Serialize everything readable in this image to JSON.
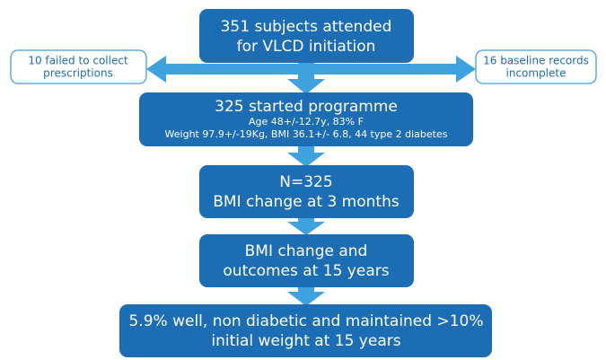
{
  "nodes": [
    {
      "lines": [
        "351 subjects attended",
        "for VLCD initiation"
      ]
    },
    {
      "lines": [
        "325 started programme",
        "Age 48+/-12.7y, 83% F",
        "Weight 97.9+/-19Kg, BMI 36.1+/- 6.8,  44 type 2 diabetes"
      ]
    },
    {
      "lines": [
        "N=325",
        "BMI change at 3 months"
      ]
    },
    {
      "lines": [
        "BMI change and",
        "outcomes at 15 years"
      ]
    },
    {
      "lines": [
        "5.9% well, non diabetic and maintained >10%",
        "initial weight at 15 years"
      ]
    }
  ],
  "side_notes": [
    {
      "lines": [
        "10 failed to collect",
        "prescriptions"
      ]
    },
    {
      "lines": [
        "16 baseline records",
        "incomplete"
      ]
    }
  ]
}
